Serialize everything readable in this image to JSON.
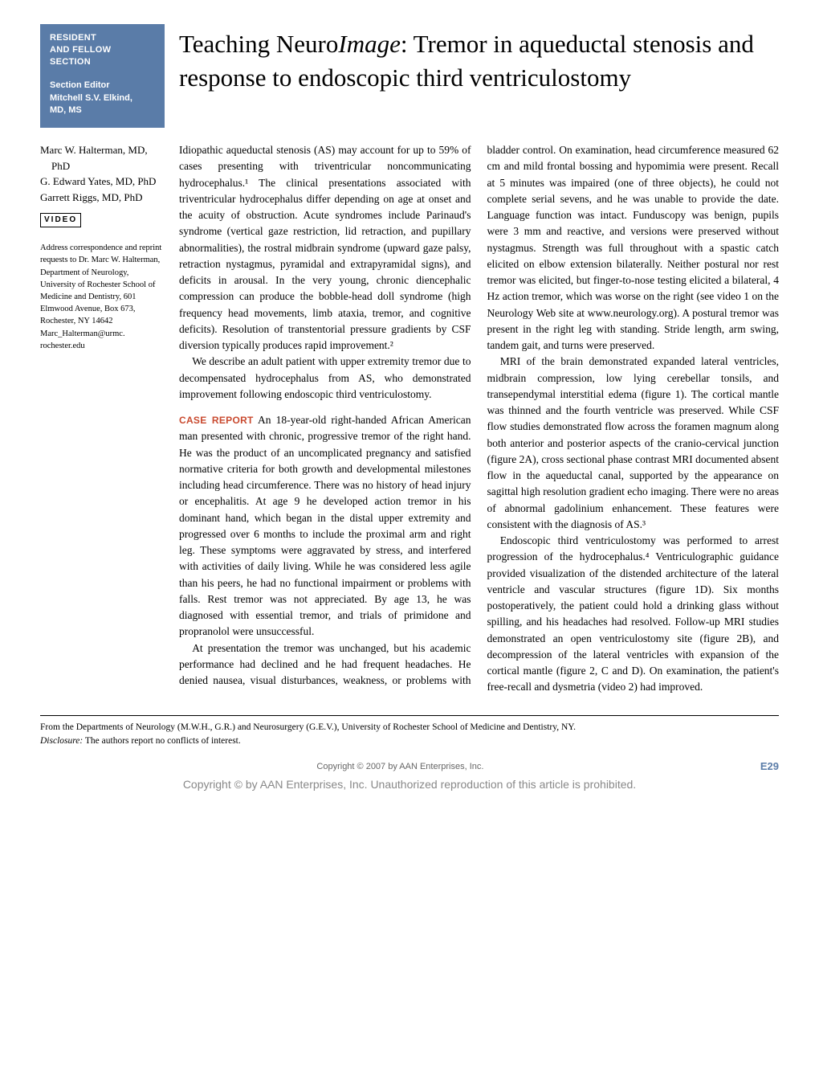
{
  "section_block": {
    "line1": "RESIDENT",
    "line2": "AND FELLOW",
    "line3": "SECTION",
    "editor_label": "Section Editor",
    "editor_name1": "Mitchell S.V. Elkind,",
    "editor_name2": "MD, MS"
  },
  "title": {
    "pre": "Teaching Neuro",
    "italic": "Image",
    "rest": ": Tremor in aqueductal stenosis and response to endoscopic third ventriculostomy"
  },
  "authors": [
    "Marc W. Halterman, MD, PhD",
    "G. Edward Yates, MD, PhD",
    "Garrett Riggs, MD, PhD"
  ],
  "video_badge": "VIDEO",
  "correspondence": "Address correspondence and reprint requests to Dr. Marc W. Halterman, Department of Neurology, University of Rochester School of Medicine and Dentistry, 601 Elmwood Avenue, Box 673, Rochester, NY 14642 Marc_Halterman@urmc. rochester.edu",
  "body": {
    "p1": "Idiopathic aqueductal stenosis (AS) may account for up to 59% of cases presenting with triventricular noncommunicating hydrocephalus.¹ The clinical presentations associated with triventricular hydrocephalus differ depending on age at onset and the acuity of obstruction. Acute syndromes include Parinaud's syndrome (vertical gaze restriction, lid retraction, and pupillary abnormalities), the rostral midbrain syndrome (upward gaze palsy, retraction nystagmus, pyramidal and extrapyramidal signs), and deficits in arousal. In the very young, chronic diencephalic compression can produce the bobble-head doll syndrome (high frequency head movements, limb ataxia, tremor, and cognitive deficits). Resolution of transtentorial pressure gradients by CSF diversion typically produces rapid improvement.²",
    "p2": "We describe an adult patient with upper extremity tremor due to decompensated hydrocephalus from AS, who demonstrated improvement following endoscopic third ventriculostomy.",
    "case_label": "CASE REPORT",
    "p3": "An 18-year-old right-handed African American man presented with chronic, progressive tremor of the right hand. He was the product of an uncomplicated pregnancy and satisfied normative criteria for both growth and developmental milestones including head circumference. There was no history of head injury or encephalitis. At age 9 he developed action tremor in his dominant hand, which began in the distal upper extremity and progressed over 6 months to include the proximal arm and right leg. These symptoms were aggravated by stress, and interfered with activities of daily living. While he was considered less agile than his peers, he had no functional impairment or problems with falls. Rest tremor was not appreciated. By age 13, he was diagnosed with essential tremor, and trials of primidone and propranolol were unsuccessful.",
    "p4": "At presentation the tremor was unchanged, but his academic performance had declined and he had frequent headaches. He denied nausea, visual disturbances, weakness, or problems with bladder control. On examination, head circumference measured 62 cm and mild frontal bossing and hypomimia were present. Recall at 5 minutes was impaired (one of three objects), he could not complete serial sevens, and he was unable to provide the date. Language function was intact. Funduscopy was benign, pupils were 3 mm and reactive, and versions were preserved without nystagmus. Strength was full throughout with a spastic catch elicited on elbow extension bilaterally. Neither postural nor rest tremor was elicited, but finger-to-nose testing elicited a bilateral, 4 Hz action tremor, which was worse on the right (see video 1 on the Neurology Web site at www.neurology.org). A postural tremor was present in the right leg with standing. Stride length, arm swing, tandem gait, and turns were preserved.",
    "p5": "MRI of the brain demonstrated expanded lateral ventricles, midbrain compression, low lying cerebellar tonsils, and transependymal interstitial edema (figure 1). The cortical mantle was thinned and the fourth ventricle was preserved. While CSF flow studies demonstrated flow across the foramen magnum along both anterior and posterior aspects of the cranio-cervical junction (figure 2A), cross sectional phase contrast MRI documented absent flow in the aqueductal canal, supported by the appearance on sagittal high resolution gradient echo imaging. There were no areas of abnormal gadolinium enhancement. These features were consistent with the diagnosis of AS.³",
    "p6": "Endoscopic third ventriculostomy was performed to arrest progression of the hydrocephalus.⁴ Ventriculographic guidance provided visualization of the distended architecture of the lateral ventricle and vascular structures (figure 1D). Six months postoperatively, the patient could hold a drinking glass without spilling, and his headaches had resolved. Follow-up MRI studies demonstrated an open ventriculostomy site (figure 2B), and decompression of the lateral ventricles with expansion of the cortical mantle (figure 2, C and D). On examination, the patient's free-recall and dysmetria (video 2) had improved."
  },
  "footer": {
    "affiliation": "From the Departments of Neurology (M.W.H., G.R.) and Neurosurgery (G.E.V.), University of Rochester School of Medicine and Dentistry, NY.",
    "disclosure_label": "Disclosure:",
    "disclosure_text": " The authors report no conflicts of interest."
  },
  "bottom": {
    "copyright_short": "Copyright © 2007 by AAN Enterprises, Inc.",
    "pagenum": "E29",
    "watermark": "Copyright © by AAN Enterprises, Inc. Unauthorized reproduction of this article is prohibited."
  },
  "colors": {
    "section_bg": "#5a7ca8",
    "case_label": "#c94a2f",
    "pagenum": "#5a7ca8",
    "watermark": "#888888"
  }
}
